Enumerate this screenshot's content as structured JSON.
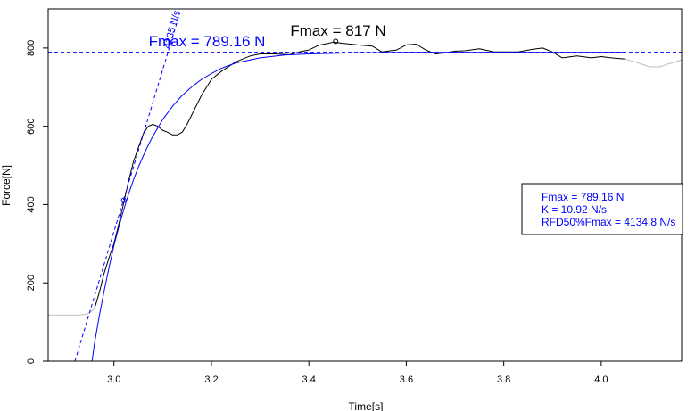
{
  "chart_data": {
    "type": "line",
    "xlabel": "Time[s]",
    "ylabel": "Force[N]",
    "xlim": [
      2.865,
      4.165
    ],
    "ylim": [
      0,
      900
    ],
    "x_ticks": [
      3.0,
      3.2,
      3.4,
      3.6,
      3.8,
      4.0
    ],
    "y_ticks": [
      0,
      200,
      400,
      600,
      800
    ],
    "x_tick_labels": [
      "3.0",
      "3.2",
      "3.4",
      "3.6",
      "3.8",
      "4.0"
    ],
    "y_tick_labels": [
      "0",
      "200",
      "400",
      "600",
      "800"
    ],
    "grid": false,
    "colors": {
      "raw": "#000000",
      "grey": "#bdbdbd",
      "fit": "#0000ff",
      "axis": "#000000"
    },
    "series": [
      {
        "role": "raw-grey-pre",
        "x": [
          2.865,
          2.9,
          2.93,
          2.945,
          2.955,
          2.96
        ],
        "y": [
          118,
          118,
          118,
          120,
          128,
          134
        ]
      },
      {
        "role": "raw-black",
        "x": [
          2.96,
          2.97,
          2.98,
          2.99,
          3.0,
          3.01,
          3.02,
          3.03,
          3.04,
          3.05,
          3.06,
          3.07,
          3.08,
          3.09,
          3.1,
          3.11,
          3.12,
          3.13,
          3.14,
          3.15,
          3.16,
          3.18,
          3.2,
          3.22,
          3.25,
          3.28,
          3.3,
          3.33,
          3.36,
          3.38,
          3.4,
          3.42,
          3.44,
          3.45,
          3.47,
          3.5,
          3.53,
          3.55,
          3.58,
          3.6,
          3.62,
          3.64,
          3.66,
          3.68,
          3.7,
          3.72,
          3.75,
          3.78,
          3.8,
          3.83,
          3.86,
          3.88,
          3.9,
          3.92,
          3.95,
          3.98,
          4.0,
          4.02,
          4.05
        ],
        "y": [
          134,
          175,
          225,
          265,
          300,
          350,
          405,
          460,
          510,
          545,
          580,
          600,
          605,
          600,
          590,
          585,
          578,
          578,
          585,
          605,
          630,
          680,
          720,
          740,
          765,
          780,
          785,
          785,
          783,
          790,
          795,
          807,
          812,
          815,
          812,
          808,
          805,
          790,
          795,
          808,
          810,
          795,
          785,
          788,
          792,
          793,
          798,
          790,
          790,
          790,
          797,
          800,
          790,
          775,
          780,
          775,
          778,
          775,
          772
        ]
      },
      {
        "role": "raw-grey-post",
        "x": [
          4.05,
          4.08,
          4.1,
          4.12,
          4.14,
          4.165
        ],
        "y": [
          772,
          760,
          752,
          752,
          760,
          770
        ]
      },
      {
        "role": "exponential-fit",
        "x": [
          2.955,
          2.96,
          2.97,
          2.98,
          2.99,
          3.0,
          3.01,
          3.02,
          3.03,
          3.04,
          3.05,
          3.06,
          3.07,
          3.08,
          3.1,
          3.12,
          3.14,
          3.16,
          3.18,
          3.2,
          3.22,
          3.25,
          3.3,
          3.35,
          3.4,
          3.5,
          3.6,
          3.7,
          3.8,
          3.9,
          4.0,
          4.05
        ],
        "y": [
          0,
          45,
          115,
          180,
          240,
          295,
          343,
          387,
          427,
          463,
          495,
          524,
          551,
          575,
          617,
          651,
          679,
          701,
          720,
          735,
          748,
          762,
          775,
          782,
          785,
          788,
          789,
          789,
          789,
          789,
          789,
          789
        ]
      }
    ],
    "fmax_fit": 789.16,
    "fmax_raw": 817,
    "fmax_raw_point": {
      "x": 3.455,
      "y": 817
    },
    "rfd50_point": {
      "x": 3.02,
      "y": 411
    },
    "tangent": {
      "x0": 2.92,
      "x1": 3.135,
      "y0": 0,
      "slope": 4134.8
    },
    "annotations": {
      "fmax_fit_label": "Fmax = 789.16 N",
      "fmax_raw_label": "Fmax = 817 N",
      "tangent_label": "4135 N/s"
    },
    "legend": {
      "placement": "right",
      "lines": [
        "Fmax = 789.16 N",
        "K =  10.92 N/s",
        "RFD50%Fmax = 4134.8 N/s"
      ]
    }
  }
}
